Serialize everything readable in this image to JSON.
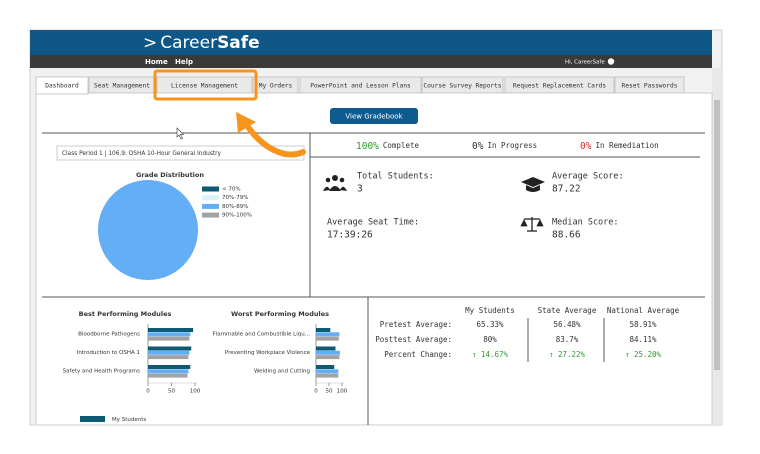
{
  "header": {
    "logo_prefix": ">",
    "logo_text": "Career",
    "logo_bold": "Safe"
  },
  "nav": {
    "links": [
      "Home",
      "Help"
    ],
    "greeting": "Hi, CareerSafe"
  },
  "tabs": [
    "Dashboard",
    "Seat Management",
    "License Management",
    "My Orders",
    "PowerPoint and Lesson Plans",
    "Course Survey Reports",
    "Request Replacement Cards",
    "Reset Passwords"
  ],
  "button": "View Gradebook",
  "class_period": "Class Period 1 | 106.9: OSHA 10-Hour General Industry",
  "grade_distribution": {
    "type": "pie",
    "title": "Grade Distribution",
    "categories": [
      "< 70%",
      "70%-79%",
      "80%-89%",
      "90%-100%"
    ],
    "values": [
      0,
      0,
      3,
      0
    ],
    "colors": [
      "#0d5a73",
      "#d9f4fb",
      "#64aef5",
      "#a3a3a3"
    ]
  },
  "status": [
    {
      "value": "100%",
      "label": "Complete",
      "color": "#2e9e2e"
    },
    {
      "value": "0%",
      "label": "In Progress",
      "color": "#333333"
    },
    {
      "value": "0%",
      "label": "In Remediation",
      "color": "#d62b2b"
    }
  ],
  "stats": [
    {
      "label": "Total Students:",
      "value": "3"
    },
    {
      "label": "Average Score:",
      "value": "87.22"
    },
    {
      "label": "Average Seat Time:",
      "value": "17:39:26"
    },
    {
      "label": "Median Score:",
      "value": "88.66"
    }
  ],
  "best_modules": {
    "type": "bar",
    "title": "Best Performing Modules",
    "categories": [
      "Bloodborne Pathogens",
      "Introduction to OSHA 1",
      "Safety and Health Programs"
    ],
    "series": [
      {
        "name": "My Students",
        "color": "#0d5a73",
        "values": [
          96,
          92,
          90
        ]
      },
      {
        "color": "#64aef5",
        "values": [
          90,
          88,
          86
        ]
      },
      {
        "color": "#a3a3a3",
        "values": [
          88,
          86,
          84
        ]
      }
    ],
    "xlim": [
      0,
      100
    ],
    "xticks": [
      0,
      50,
      100
    ]
  },
  "worst_modules": {
    "type": "bar",
    "title": "Worst Performing Modules",
    "categories": [
      "Flammable and Combustible Liqu...",
      "Preventing Workplace Violence",
      "Welding and Cutting"
    ],
    "series": [
      {
        "color": "#0d5a73",
        "values": [
          55,
          75,
          70
        ]
      },
      {
        "color": "#64aef5",
        "values": [
          90,
          92,
          86
        ]
      },
      {
        "color": "#a3a3a3",
        "values": [
          88,
          90,
          86
        ]
      }
    ],
    "xlim": [
      0,
      100
    ],
    "xticks": [
      0,
      50,
      100
    ]
  },
  "comparison": {
    "columns": [
      "My Students",
      "State Average",
      "National Average"
    ],
    "rows": [
      {
        "label": "Pretest Average:",
        "cells": [
          "65.33%",
          "56.48%",
          "58.91%"
        ]
      },
      {
        "label": "Posttest Average:",
        "cells": [
          "80%",
          "83.7%",
          "84.11%"
        ]
      },
      {
        "label": "Percent Change:",
        "cells": [
          "↑ 14.67%",
          "↑ 27.22%",
          "↑ 25.20%"
        ]
      }
    ]
  }
}
